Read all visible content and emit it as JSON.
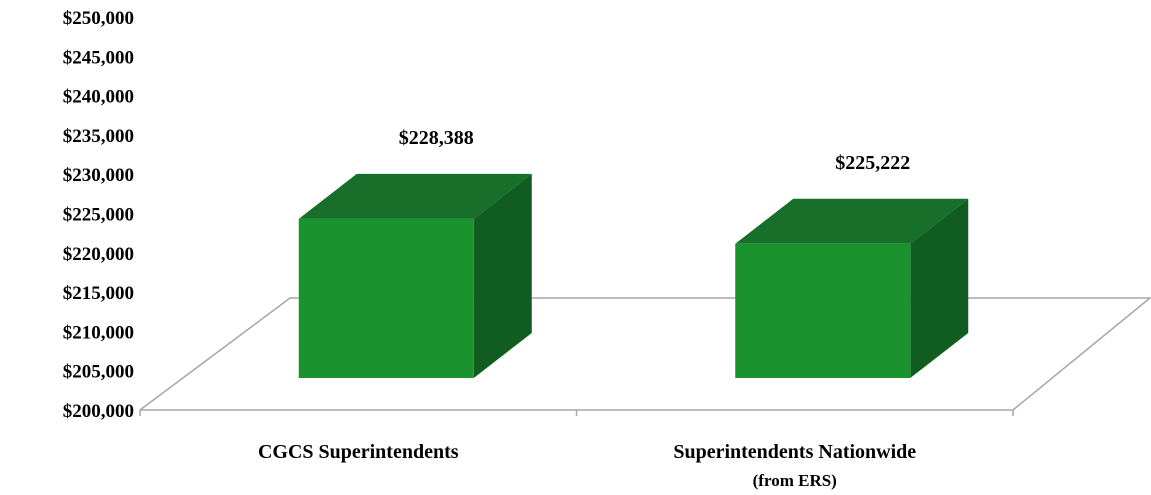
{
  "chart_data": {
    "type": "bar",
    "three_d": true,
    "categories": [
      {
        "label": "CGCS Superintendents",
        "sublabel": ""
      },
      {
        "label": "Superintendents Nationwide",
        "sublabel": "(from ERS)"
      }
    ],
    "values": [
      228388,
      225222
    ],
    "data_labels": [
      "$228,388",
      "$225,222"
    ],
    "ylim": [
      200000,
      250000
    ],
    "yticks": [
      {
        "value": 200000,
        "label": "$200,000"
      },
      {
        "value": 205000,
        "label": "$205,000"
      },
      {
        "value": 210000,
        "label": "$210,000"
      },
      {
        "value": 215000,
        "label": "$215,000"
      },
      {
        "value": 220000,
        "label": "$220,000"
      },
      {
        "value": 225000,
        "label": "$225,000"
      },
      {
        "value": 230000,
        "label": "$230,000"
      },
      {
        "value": 235000,
        "label": "$235,000"
      },
      {
        "value": 240000,
        "label": "$240,000"
      },
      {
        "value": 245000,
        "label": "$245,000"
      },
      {
        "value": 250000,
        "label": "$250,000"
      }
    ],
    "title": "",
    "xlabel": "",
    "ylabel": "",
    "grid": false,
    "colors": {
      "bar_front": "#1a922e",
      "bar_top": "#176f29",
      "bar_side": "#115d21",
      "floor_line": "#a6a6a6"
    }
  }
}
